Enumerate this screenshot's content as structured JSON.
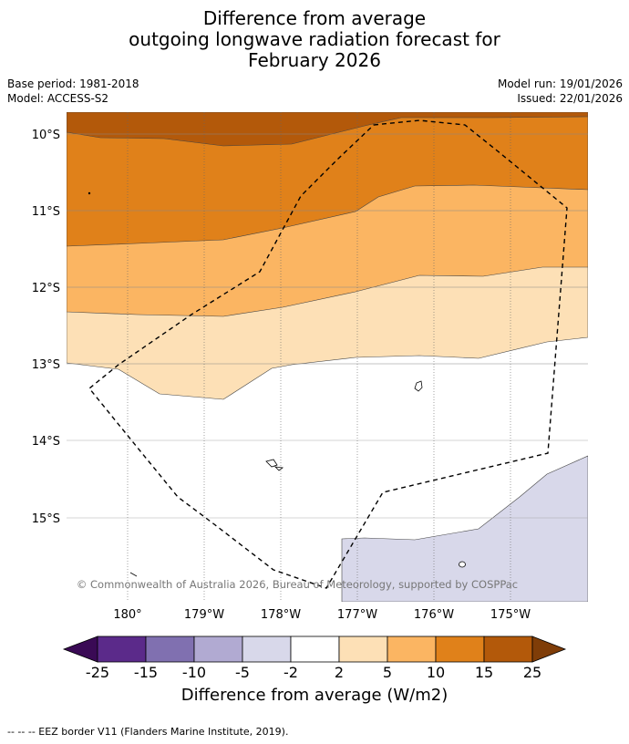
{
  "title": {
    "line1": "Difference from average",
    "line2": "outgoing longwave radiation forecast for",
    "line3": "February 2026"
  },
  "meta": {
    "base_period": "Base period: 1981-2018",
    "model": "Model: ACCESS-S2",
    "model_run": "Model run: 19/01/2026",
    "issued": "Issued: 22/01/2026"
  },
  "map": {
    "lat_labels": [
      "10°S",
      "11°S",
      "12°S",
      "13°S",
      "14°S",
      "15°S"
    ],
    "lon_labels": [
      "180°",
      "179°W",
      "178°W",
      "177°W",
      "176°W",
      "175°W"
    ],
    "copyright": "© Commonwealth of Australia 2026, Bureau of Meteorology, supported by COSPPac"
  },
  "colorbar": {
    "ticks": [
      "-25",
      "-15",
      "-10",
      "-5",
      "-2",
      "2",
      "5",
      "10",
      "15",
      "25"
    ],
    "colors": {
      "below_-25": "#3a0a55",
      "-25_-15": "#5b2a8a",
      "-15_-10": "#8070b0",
      "-10_-5": "#b1aad2",
      "-5_-2": "#d8d8ea",
      "-2_2": "#ffffff",
      "2_5": "#fde0b6",
      "5_10": "#fbb562",
      "10_15": "#e0811a",
      "15_25": "#b3590a",
      "above_25": "#7f3d08"
    },
    "label": "Difference from average (W/m2)"
  },
  "footer": "--  --  -- EEZ border V11 (Flanders Marine Institute, 2019)."
}
